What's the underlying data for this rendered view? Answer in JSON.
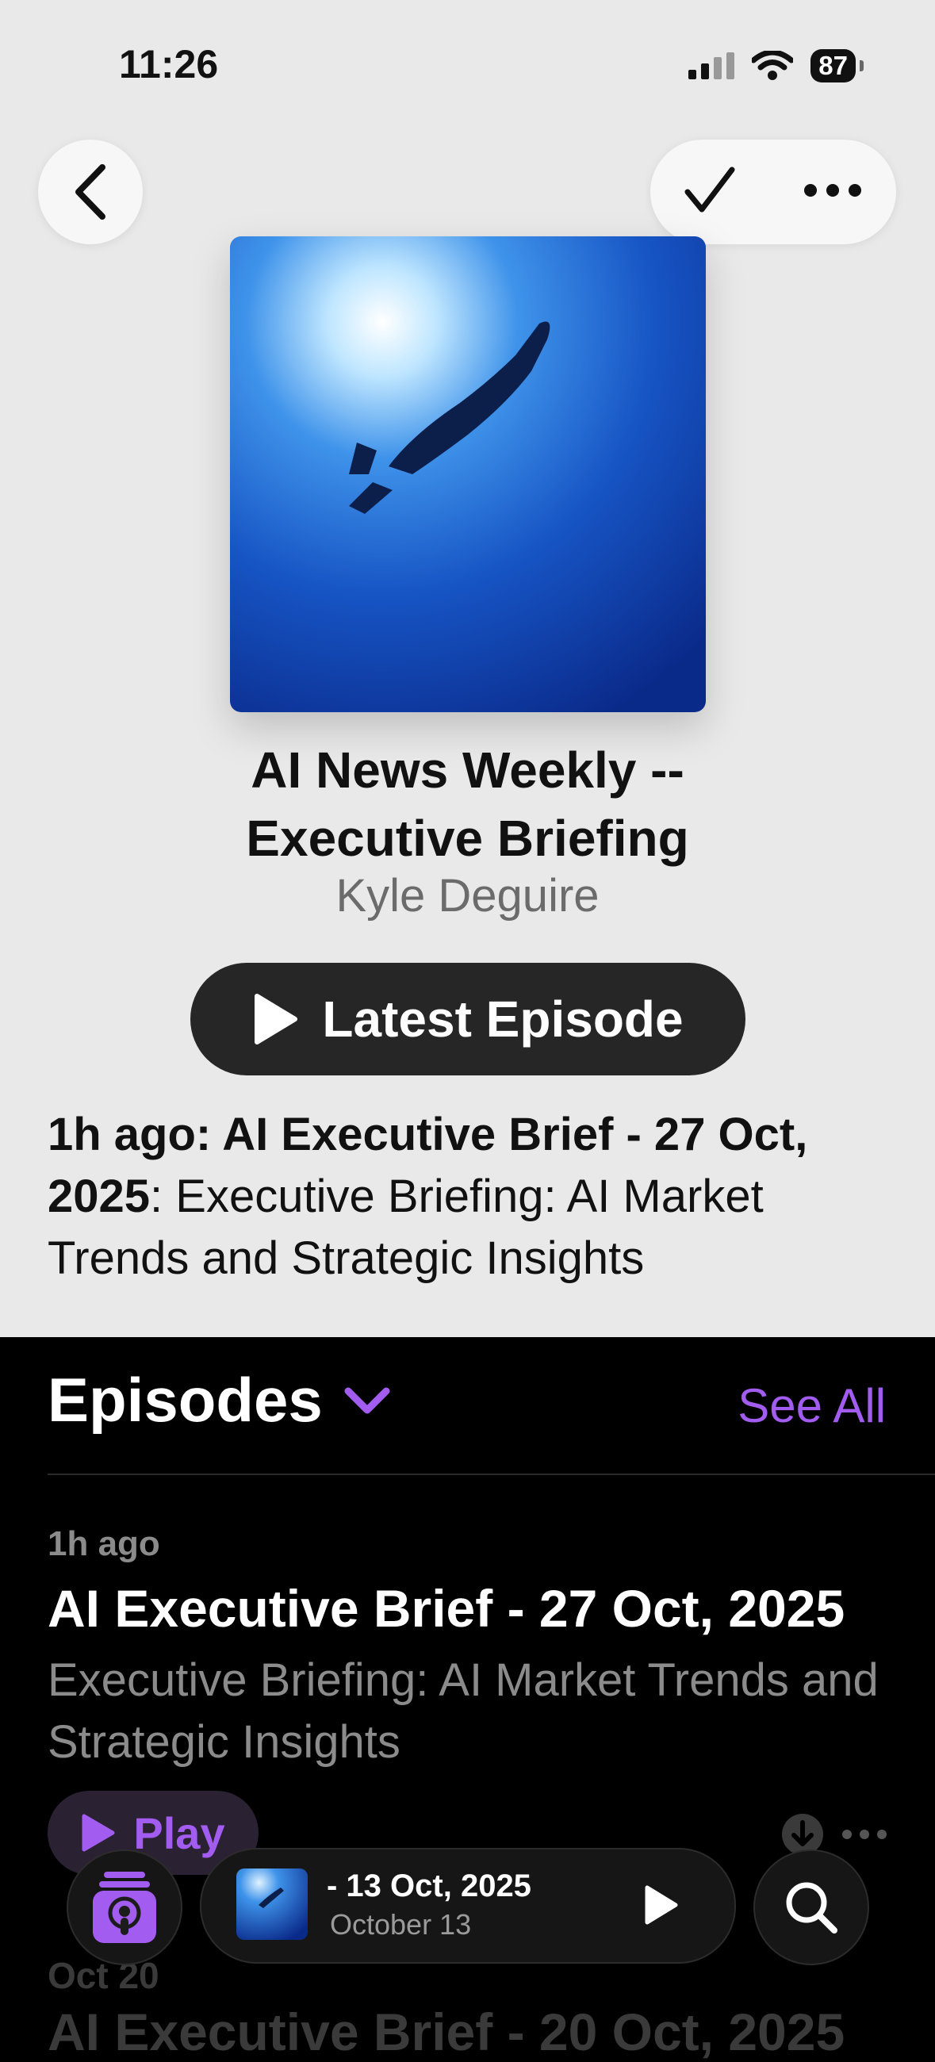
{
  "status_bar": {
    "time": "11:26",
    "battery": "87"
  },
  "nav": {
    "back_icon": "chevron-left-icon",
    "check_icon": "checkmark-icon",
    "more_icon": "ellipsis-icon"
  },
  "show": {
    "title_line1": "AI News Weekly --",
    "title_line2": "Executive Briefing",
    "author": "Kyle Deguire",
    "latest_button": "Latest Episode",
    "latest_desc_bold": "1h ago: AI Executive Brief - 27 Oct, 2025",
    "latest_desc_text": ": Executive Briefing: AI Market Trends and Strategic Insights"
  },
  "episodes": {
    "header": "Episodes",
    "see_all": "See All",
    "items": [
      {
        "meta": "1h ago",
        "title": "AI Executive Brief - 27 Oct, 2025",
        "summary": "Executive Briefing: AI Market Trends and Strategic Insights",
        "play_label": "Play"
      },
      {
        "meta": "Oct 20",
        "title": "AI Executive Brief - 20 Oct, 2025"
      }
    ]
  },
  "mini_player": {
    "title": "- 13 Oct, 2025",
    "subtitle": "October 13"
  },
  "colors": {
    "accent": "#a25cf0",
    "background_top": "#e9e9e9",
    "background_bottom": "#000000"
  }
}
